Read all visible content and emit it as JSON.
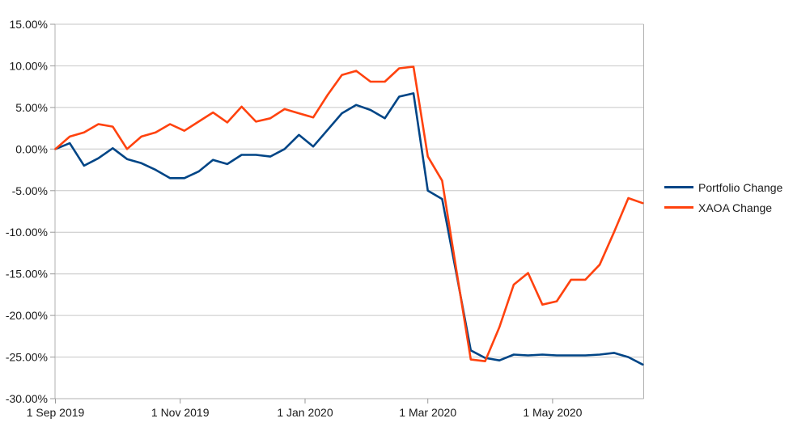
{
  "chart_data": {
    "type": "line",
    "title": "",
    "x_dates": [
      "2019-09-01",
      "2019-09-08",
      "2019-09-15",
      "2019-09-22",
      "2019-09-29",
      "2019-10-06",
      "2019-10-13",
      "2019-10-20",
      "2019-10-27",
      "2019-11-03",
      "2019-11-10",
      "2019-11-17",
      "2019-11-24",
      "2019-12-01",
      "2019-12-08",
      "2019-12-15",
      "2019-12-22",
      "2019-12-29",
      "2020-01-05",
      "2020-01-12",
      "2020-01-19",
      "2020-01-26",
      "2020-02-02",
      "2020-02-09",
      "2020-02-16",
      "2020-02-23",
      "2020-03-01",
      "2020-03-08",
      "2020-03-15",
      "2020-03-22",
      "2020-03-29",
      "2020-04-05",
      "2020-04-12",
      "2020-04-19",
      "2020-04-26",
      "2020-05-03",
      "2020-05-10",
      "2020-05-17",
      "2020-05-24",
      "2020-05-31",
      "2020-06-07",
      "2020-06-14"
    ],
    "series": [
      {
        "name": "Portfolio Change",
        "color": "#004586",
        "values": [
          0.0,
          0.7,
          -2.0,
          -1.1,
          0.1,
          -1.2,
          -1.7,
          -2.5,
          -3.5,
          -3.5,
          -2.7,
          -1.3,
          -1.8,
          -0.7,
          -0.7,
          -0.9,
          0.0,
          1.7,
          0.3,
          2.3,
          4.3,
          5.3,
          4.7,
          3.7,
          6.3,
          6.7,
          -5.0,
          -6.0,
          -15.0,
          -24.2,
          -25.1,
          -25.4,
          -24.7,
          -24.8,
          -24.7,
          -24.8,
          -24.8,
          -24.8,
          -24.7,
          -24.5,
          -25.0,
          -25.9
        ]
      },
      {
        "name": "XAOA Change",
        "color": "#FF420E",
        "values": [
          0.0,
          1.5,
          2.0,
          3.0,
          2.7,
          0.0,
          1.5,
          2.0,
          3.0,
          2.2,
          3.3,
          4.4,
          3.2,
          5.1,
          3.3,
          3.7,
          4.8,
          4.3,
          3.8,
          6.5,
          8.9,
          9.4,
          8.1,
          8.1,
          9.7,
          9.9,
          -0.9,
          -3.8,
          -14.6,
          -25.3,
          -25.5,
          -21.4,
          -16.3,
          -14.9,
          -18.7,
          -18.3,
          -15.7,
          -15.7,
          -13.9,
          -10.0,
          -5.9,
          -6.5
        ]
      }
    ],
    "ylim": [
      -30,
      15
    ],
    "yticks": [
      {
        "value": 15,
        "label": "15.00%"
      },
      {
        "value": 10,
        "label": "10.00%"
      },
      {
        "value": 5,
        "label": "5.00%"
      },
      {
        "value": 0,
        "label": "0.00%"
      },
      {
        "value": -5,
        "label": "-5.00%"
      },
      {
        "value": -10,
        "label": "-10.00%"
      },
      {
        "value": -15,
        "label": "-15.00%"
      },
      {
        "value": -20,
        "label": "-20.00%"
      },
      {
        "value": -25,
        "label": "-25.00%"
      },
      {
        "value": -30,
        "label": "-30.00%"
      }
    ],
    "xticks": [
      {
        "label": "1 Sep 2019",
        "week": 0
      },
      {
        "label": "1 Nov 2019",
        "week": 8.714
      },
      {
        "label": "1 Jan 2020",
        "week": 17.429
      },
      {
        "label": "1 Mar 2020",
        "week": 26
      },
      {
        "label": "1 May 2020",
        "week": 34.714
      }
    ],
    "grid": "horizontal",
    "legend_position": "right",
    "colors": {
      "grid": "#c6c6c6",
      "axis": "#b0b0b0",
      "tick": "#999999",
      "text": "#1a1a1a",
      "background": "#ffffff"
    }
  }
}
